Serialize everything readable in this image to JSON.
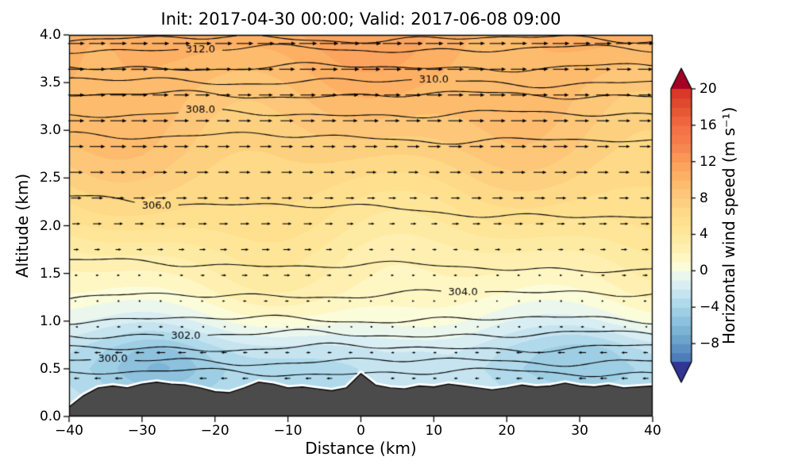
{
  "title": "Init: 2017-04-30 00:00; Valid: 2017-06-08 09:00",
  "axes": {
    "xlabel": "Distance (km)",
    "ylabel": "Altitude (km)",
    "xlim": [
      -40,
      40
    ],
    "ylim": [
      0,
      4
    ],
    "xtick_values": [
      -40,
      -30,
      -20,
      -10,
      0,
      10,
      20,
      30,
      40
    ],
    "xtick_labels": [
      "−40",
      "−30",
      "−20",
      "−10",
      "0",
      "10",
      "20",
      "30",
      "40"
    ],
    "ytick_values": [
      0,
      0.5,
      1,
      1.5,
      2,
      2.5,
      3,
      3.5,
      4
    ],
    "ytick_labels": [
      "0.0",
      "0.5",
      "1.0",
      "1.5",
      "2.0",
      "2.5",
      "3.0",
      "3.5",
      "4.0"
    ]
  },
  "colorbar": {
    "label": "Horizontal wind speed (m s⁻¹)",
    "vmin": -10,
    "vmax": 20,
    "extend": "both",
    "over_color": "#a50026",
    "under_color": "#313695",
    "tick_values": [
      -8,
      -4,
      0,
      4,
      8,
      12,
      16,
      20
    ],
    "tick_labels": [
      "−8",
      "−4",
      "0",
      "4",
      "8",
      "12",
      "16",
      "20"
    ]
  },
  "chart_data": {
    "type": "heatmap",
    "subtype": "vertical-cross-section contourf + theta contours + wind quiver",
    "title": "Init: 2017-04-30 00:00; Valid: 2017-06-08 09:00",
    "xlabel": "Distance (km)",
    "ylabel": "Altitude (km)",
    "xlim": [
      -40,
      40
    ],
    "ylim": [
      0,
      4
    ],
    "fill_variable": "Horizontal wind speed (m s⁻¹)",
    "fill_level_step": 1,
    "colormap_stops": [
      [
        -10,
        "#4575b4"
      ],
      [
        -7,
        "#74add1"
      ],
      [
        -4,
        "#a6d5e8"
      ],
      [
        -2,
        "#cfe9f2"
      ],
      [
        -0.7,
        "#e8f6f1"
      ],
      [
        0.5,
        "#fbfcda"
      ],
      [
        2,
        "#fff3b8"
      ],
      [
        4,
        "#fee89c"
      ],
      [
        6,
        "#fedd8a"
      ],
      [
        8,
        "#fdcb7d"
      ],
      [
        10,
        "#fdb567"
      ],
      [
        12,
        "#fb9d59"
      ],
      [
        14,
        "#f5804e"
      ],
      [
        16,
        "#f46d43"
      ],
      [
        18,
        "#e1512f"
      ],
      [
        20,
        "#d73027"
      ]
    ],
    "wind_profile": {
      "altitude_km": [
        0,
        0.3,
        0.5,
        0.7,
        0.9,
        1.05,
        1.3,
        1.7,
        2.0,
        2.4,
        2.8,
        3.2,
        3.6,
        4.0
      ],
      "speed_m_s": [
        -2.5,
        -3.2,
        -3.5,
        -2.8,
        -1.2,
        0,
        1.5,
        3.0,
        4.5,
        6.2,
        7.8,
        9.0,
        10.0,
        11.0
      ]
    },
    "theta_contours": {
      "units": "K",
      "levels": [
        299,
        300,
        301,
        302,
        303,
        304,
        305,
        306,
        307,
        308,
        309,
        310,
        311,
        312,
        313
      ],
      "base_altitude_km": {
        "299": 0.46,
        "300": 0.58,
        "301": 0.72,
        "302": 0.86,
        "303": 1.02,
        "304": 1.28,
        "305": 1.58,
        "306": 2.18,
        "307": 2.92,
        "308": 3.17,
        "309": 3.37,
        "310": 3.51,
        "311": 3.66,
        "312": 3.85,
        "313": 3.96
      },
      "slope_per_km": {
        "304": 0.0008,
        "305": -0.001,
        "306": -0.0028,
        "307": -0.0012,
        "310": -0.0004
      },
      "labels": [
        {
          "level": 300,
          "x": -34
        },
        {
          "level": 302,
          "x": -24
        },
        {
          "level": 304,
          "x": 14
        },
        {
          "level": 306,
          "x": -28
        },
        {
          "level": 308,
          "x": -22
        },
        {
          "level": 310,
          "x": 10
        },
        {
          "level": 312,
          "x": -22
        }
      ]
    },
    "terrain": {
      "x": [
        -40,
        -38,
        -36,
        -34,
        -32,
        -30,
        -28,
        -26,
        -24,
        -22,
        -20,
        -18,
        -16,
        -14,
        -12,
        -10,
        -8,
        -6,
        -4,
        -2,
        0,
        2,
        4,
        6,
        8,
        10,
        12,
        14,
        16,
        18,
        20,
        22,
        24,
        26,
        28,
        30,
        32,
        34,
        36,
        38,
        40
      ],
      "height_km": [
        0.1,
        0.22,
        0.3,
        0.32,
        0.3,
        0.34,
        0.36,
        0.34,
        0.33,
        0.3,
        0.26,
        0.25,
        0.3,
        0.36,
        0.34,
        0.3,
        0.31,
        0.29,
        0.27,
        0.3,
        0.45,
        0.33,
        0.3,
        0.29,
        0.32,
        0.31,
        0.34,
        0.32,
        0.3,
        0.28,
        0.3,
        0.33,
        0.31,
        0.32,
        0.35,
        0.32,
        0.31,
        0.33,
        0.3,
        0.31,
        0.32
      ]
    },
    "quiver": {
      "x_start": -39,
      "x_step": 2.889,
      "x_count": 28,
      "z_rows": [
        0.4,
        0.67,
        0.94,
        1.21,
        1.48,
        1.75,
        2.02,
        2.29,
        2.56,
        2.83,
        3.1,
        3.37,
        3.64,
        3.91
      ]
    }
  }
}
